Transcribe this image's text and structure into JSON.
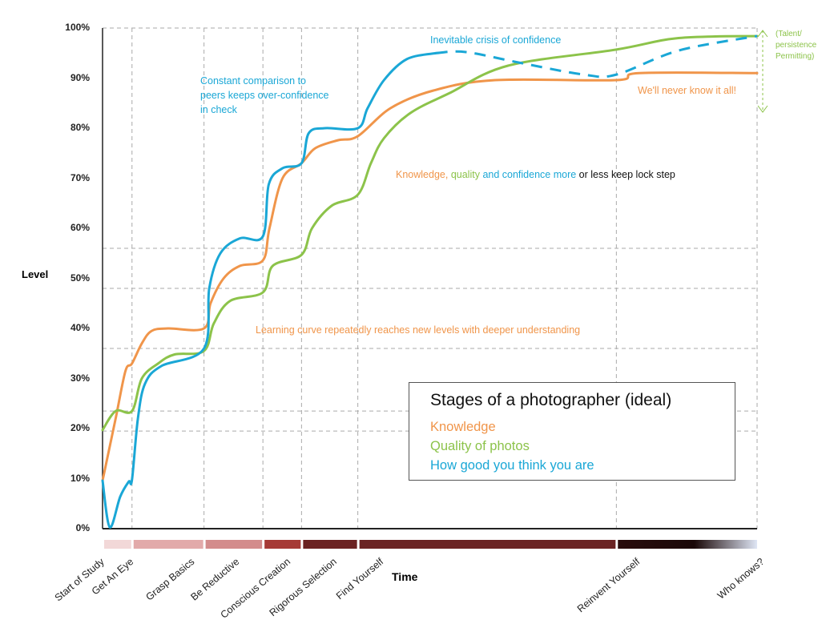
{
  "chart_data": {
    "type": "line",
    "title": "Stages of a photographer  (ideal)",
    "xlabel": "Time",
    "ylabel": "Level",
    "ylim": [
      0,
      100
    ],
    "xlim": [
      0,
      100
    ],
    "yticks": [
      "0%",
      "10%",
      "20%",
      "30%",
      "40%",
      "50%",
      "60%",
      "70%",
      "80%",
      "90%",
      "100%"
    ],
    "stages": [
      {
        "label": "Start of Study",
        "x": 0
      },
      {
        "label": "Get An Eye",
        "x": 4.5,
        "bar_color": "#f2d8d8"
      },
      {
        "label": "Grasp Basics",
        "x": 15.5,
        "bar_color": "#e2aaaa"
      },
      {
        "label": "Be Reductive",
        "x": 24.5,
        "bar_color": "#d38c8c"
      },
      {
        "label": "Conscious Creation",
        "x": 30.4,
        "bar_color": "#a63a36"
      },
      {
        "label": "Rigorous Selection",
        "x": 39,
        "bar_color": "#6b2222"
      },
      {
        "label": "Find Yourself",
        "x": 78.5,
        "bar_color": "#6b2424"
      },
      {
        "label": "Reinvent Yourself",
        "x": 100,
        "bar_color": "#2a0d0d"
      },
      {
        "label": "Who knows?",
        "x": 100
      }
    ],
    "legend_placement": "bottom-right",
    "series": [
      {
        "name": "Knowledge",
        "color": "#f0954a",
        "points": [
          [
            0,
            9.6
          ],
          [
            2,
            22
          ],
          [
            3.5,
            31.5
          ],
          [
            4.5,
            33
          ],
          [
            6,
            37
          ],
          [
            7.5,
            39.5
          ],
          [
            10,
            40
          ],
          [
            15.5,
            40
          ],
          [
            16.5,
            45
          ],
          [
            18.5,
            50
          ],
          [
            21,
            52.5
          ],
          [
            24.5,
            53.6
          ],
          [
            25.5,
            60
          ],
          [
            27.5,
            70
          ],
          [
            30.4,
            73
          ],
          [
            32.5,
            76
          ],
          [
            36,
            77.6
          ],
          [
            39,
            78.4
          ],
          [
            44,
            84
          ],
          [
            50.5,
            87.5
          ],
          [
            60,
            89.6
          ],
          [
            78.5,
            89.6
          ],
          [
            82,
            91
          ],
          [
            100,
            91
          ]
        ]
      },
      {
        "name": "Quality of photos",
        "color": "#8cc34a",
        "points": [
          [
            0,
            19.7
          ],
          [
            2,
            23.5
          ],
          [
            4.5,
            23.5
          ],
          [
            6,
            30
          ],
          [
            8.5,
            33
          ],
          [
            11,
            34.8
          ],
          [
            15.5,
            35.5
          ],
          [
            17,
            41
          ],
          [
            19.5,
            45.5
          ],
          [
            24.5,
            47.2
          ],
          [
            26,
            52.5
          ],
          [
            30.4,
            54.7
          ],
          [
            32,
            60
          ],
          [
            35,
            64.5
          ],
          [
            39,
            66.7
          ],
          [
            41,
            73
          ],
          [
            43,
            78
          ],
          [
            47,
            83
          ],
          [
            53,
            87
          ],
          [
            62,
            92.5
          ],
          [
            78.5,
            95.7
          ],
          [
            88,
            98
          ],
          [
            100,
            98.4
          ]
        ]
      },
      {
        "name": "How good you think you are",
        "color": "#1aa7d6",
        "points": [
          [
            0,
            9.6
          ],
          [
            1.1,
            0.3
          ],
          [
            2.7,
            6.4
          ],
          [
            4,
            9.4
          ],
          [
            4.5,
            9.8
          ],
          [
            5.4,
            22
          ],
          [
            6.5,
            29
          ],
          [
            9,
            32.5
          ],
          [
            15.5,
            36
          ],
          [
            16.3,
            48
          ],
          [
            18,
            55
          ],
          [
            21,
            58
          ],
          [
            24.5,
            58.4
          ],
          [
            25.4,
            68.8
          ],
          [
            27.5,
            72
          ],
          [
            30.4,
            73
          ],
          [
            31.5,
            79
          ],
          [
            34,
            80
          ],
          [
            39,
            80
          ],
          [
            40.5,
            84
          ],
          [
            43,
            89.6
          ],
          [
            46.5,
            93.8
          ],
          [
            51,
            95
          ]
        ],
        "dashed_continuation": [
          [
            51,
            95
          ],
          [
            55.5,
            95.2
          ],
          [
            64,
            93
          ],
          [
            73.5,
            90.7
          ],
          [
            78.5,
            90.7
          ],
          [
            88,
            95.5
          ],
          [
            100,
            98.4
          ]
        ]
      }
    ],
    "annotations": {
      "crisis": "Inevitable crisis of confidence",
      "comparison": [
        "Constant comparison to",
        "peers keeps over-confidence",
        "in check"
      ],
      "lockstep": {
        "knowledge": "Knowledge,",
        "quality": "quality",
        "confidence": "and confidence more",
        "rest": "or less keep lock step"
      },
      "learning": "Learning curve repeatedly reaches new levels with deeper understanding",
      "never_know": "We'll never know it all!",
      "talent": [
        "(Talent/",
        "persistence",
        "Permitting)"
      ]
    }
  }
}
